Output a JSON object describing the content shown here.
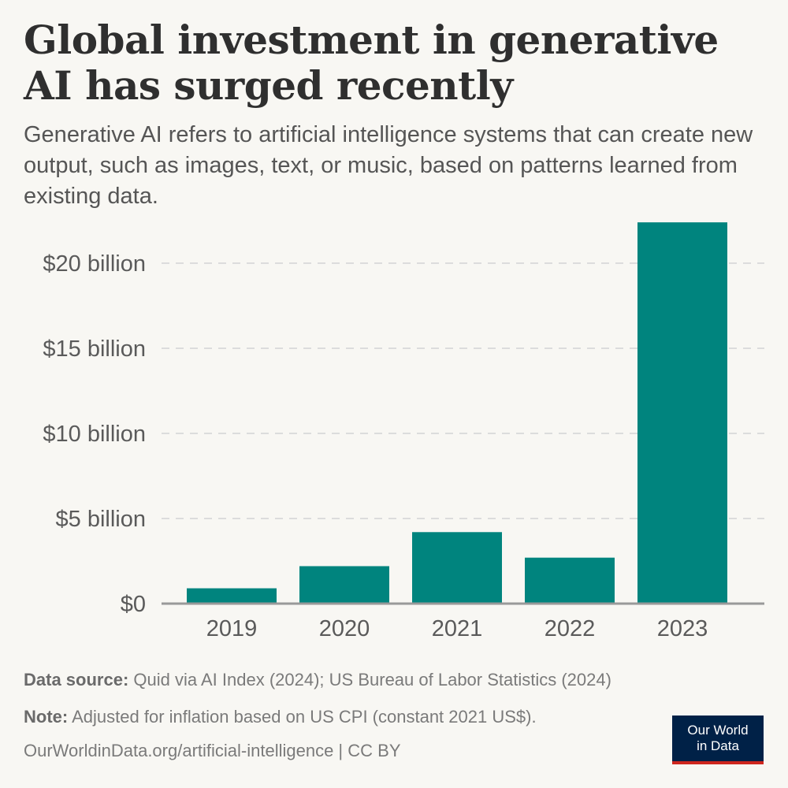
{
  "title": "Global investment in generative AI has surged recently",
  "subtitle": "Generative AI refers to artificial intelligence systems that can create new output, such as images, text, or music, based on patterns learned from existing data.",
  "footer": {
    "source_label": "Data source:",
    "source_text": "Quid via AI Index (2024); US Bureau of Labor Statistics (2024)",
    "note_label": "Note:",
    "note_text": "Adjusted for inflation based on US CPI (constant 2021 US$).",
    "url": "OurWorldinData.org/artificial-intelligence | CC BY"
  },
  "logo": {
    "line1": "Our World",
    "line2": "in Data"
  },
  "colors": {
    "bar": "#00847e",
    "grid": "#dcdcdc",
    "axis": "#999999",
    "logo_bg": "#002147",
    "logo_accent": "#ce261e"
  },
  "chart_data": {
    "type": "bar",
    "categories": [
      "2019",
      "2020",
      "2021",
      "2022",
      "2023"
    ],
    "values": [
      0.9,
      2.2,
      4.2,
      2.7,
      22.4
    ],
    "ylim": [
      0,
      22.5
    ],
    "yticks": [
      0,
      5,
      10,
      15,
      20
    ],
    "ytick_labels": [
      "$0",
      "$5 billion",
      "$10 billion",
      "$15 billion",
      "$20 billion"
    ],
    "unit": "billion US$",
    "grid": true
  }
}
